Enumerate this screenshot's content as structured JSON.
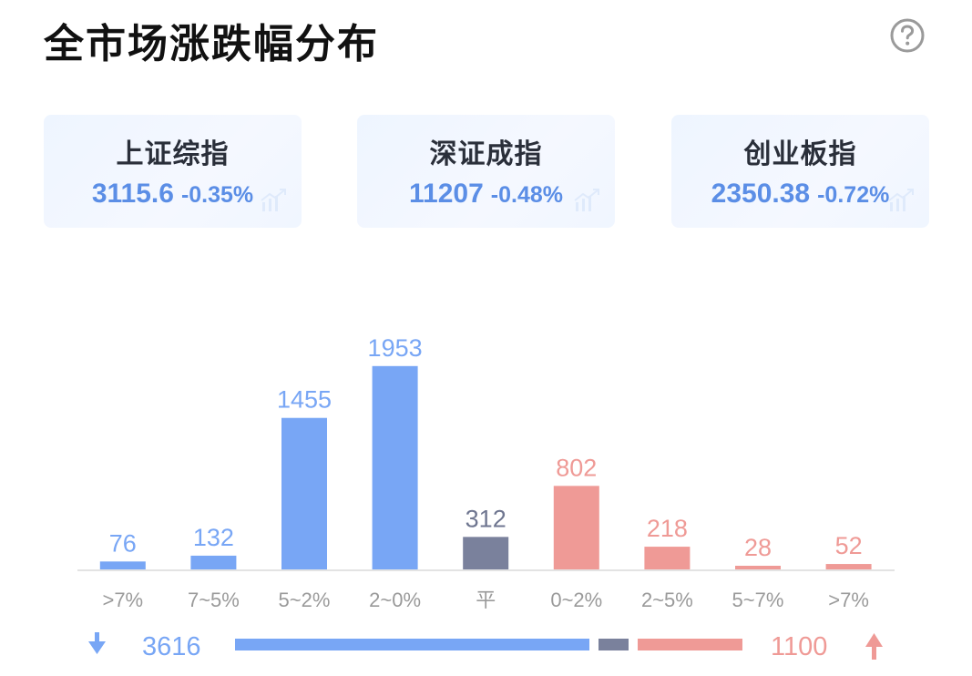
{
  "header": {
    "title": "全市场涨跌幅分布",
    "help_icon": "question-circle-icon"
  },
  "indices": [
    {
      "name": "上证综指",
      "value": "3115.6",
      "change": "-0.35%",
      "color": "#5b8ee6"
    },
    {
      "name": "深证成指",
      "value": "11207",
      "change": "-0.48%",
      "color": "#5b8ee6"
    },
    {
      "name": "创业板指",
      "value": "2350.38",
      "change": "-0.72%",
      "color": "#5b8ee6"
    }
  ],
  "chart_data": {
    "type": "bar",
    "categories": [
      ">7%",
      "7~5%",
      "5~2%",
      "2~0%",
      "平",
      "0~2%",
      "2~5%",
      "5~7%",
      ">7%"
    ],
    "values": [
      76,
      132,
      1455,
      1953,
      312,
      802,
      218,
      28,
      52
    ],
    "value_labels": [
      "76",
      "132",
      "1455",
      "1953",
      "312",
      "802",
      "218",
      "28",
      "52"
    ],
    "bar_colors": [
      "#78a6f5",
      "#78a6f5",
      "#78a6f5",
      "#78a6f5",
      "#7a819c",
      "#ef9a96",
      "#ef9a96",
      "#ef9a96",
      "#ef9a96"
    ],
    "label_colors": [
      "#78a6f5",
      "#78a6f5",
      "#78a6f5",
      "#78a6f5",
      "#6f7690",
      "#ef9a96",
      "#ef9a96",
      "#ef9a96",
      "#ef9a96"
    ],
    "ylim": [
      0,
      2100
    ],
    "grid": false,
    "legend": "none"
  },
  "summary": {
    "down_count": "3616",
    "up_count": "1100",
    "flat_count": 312,
    "down_color": "#78a6f5",
    "flat_color": "#7a819c",
    "up_color": "#ef9a96",
    "down_icon": "arrow-down-icon",
    "up_icon": "arrow-up-icon"
  }
}
